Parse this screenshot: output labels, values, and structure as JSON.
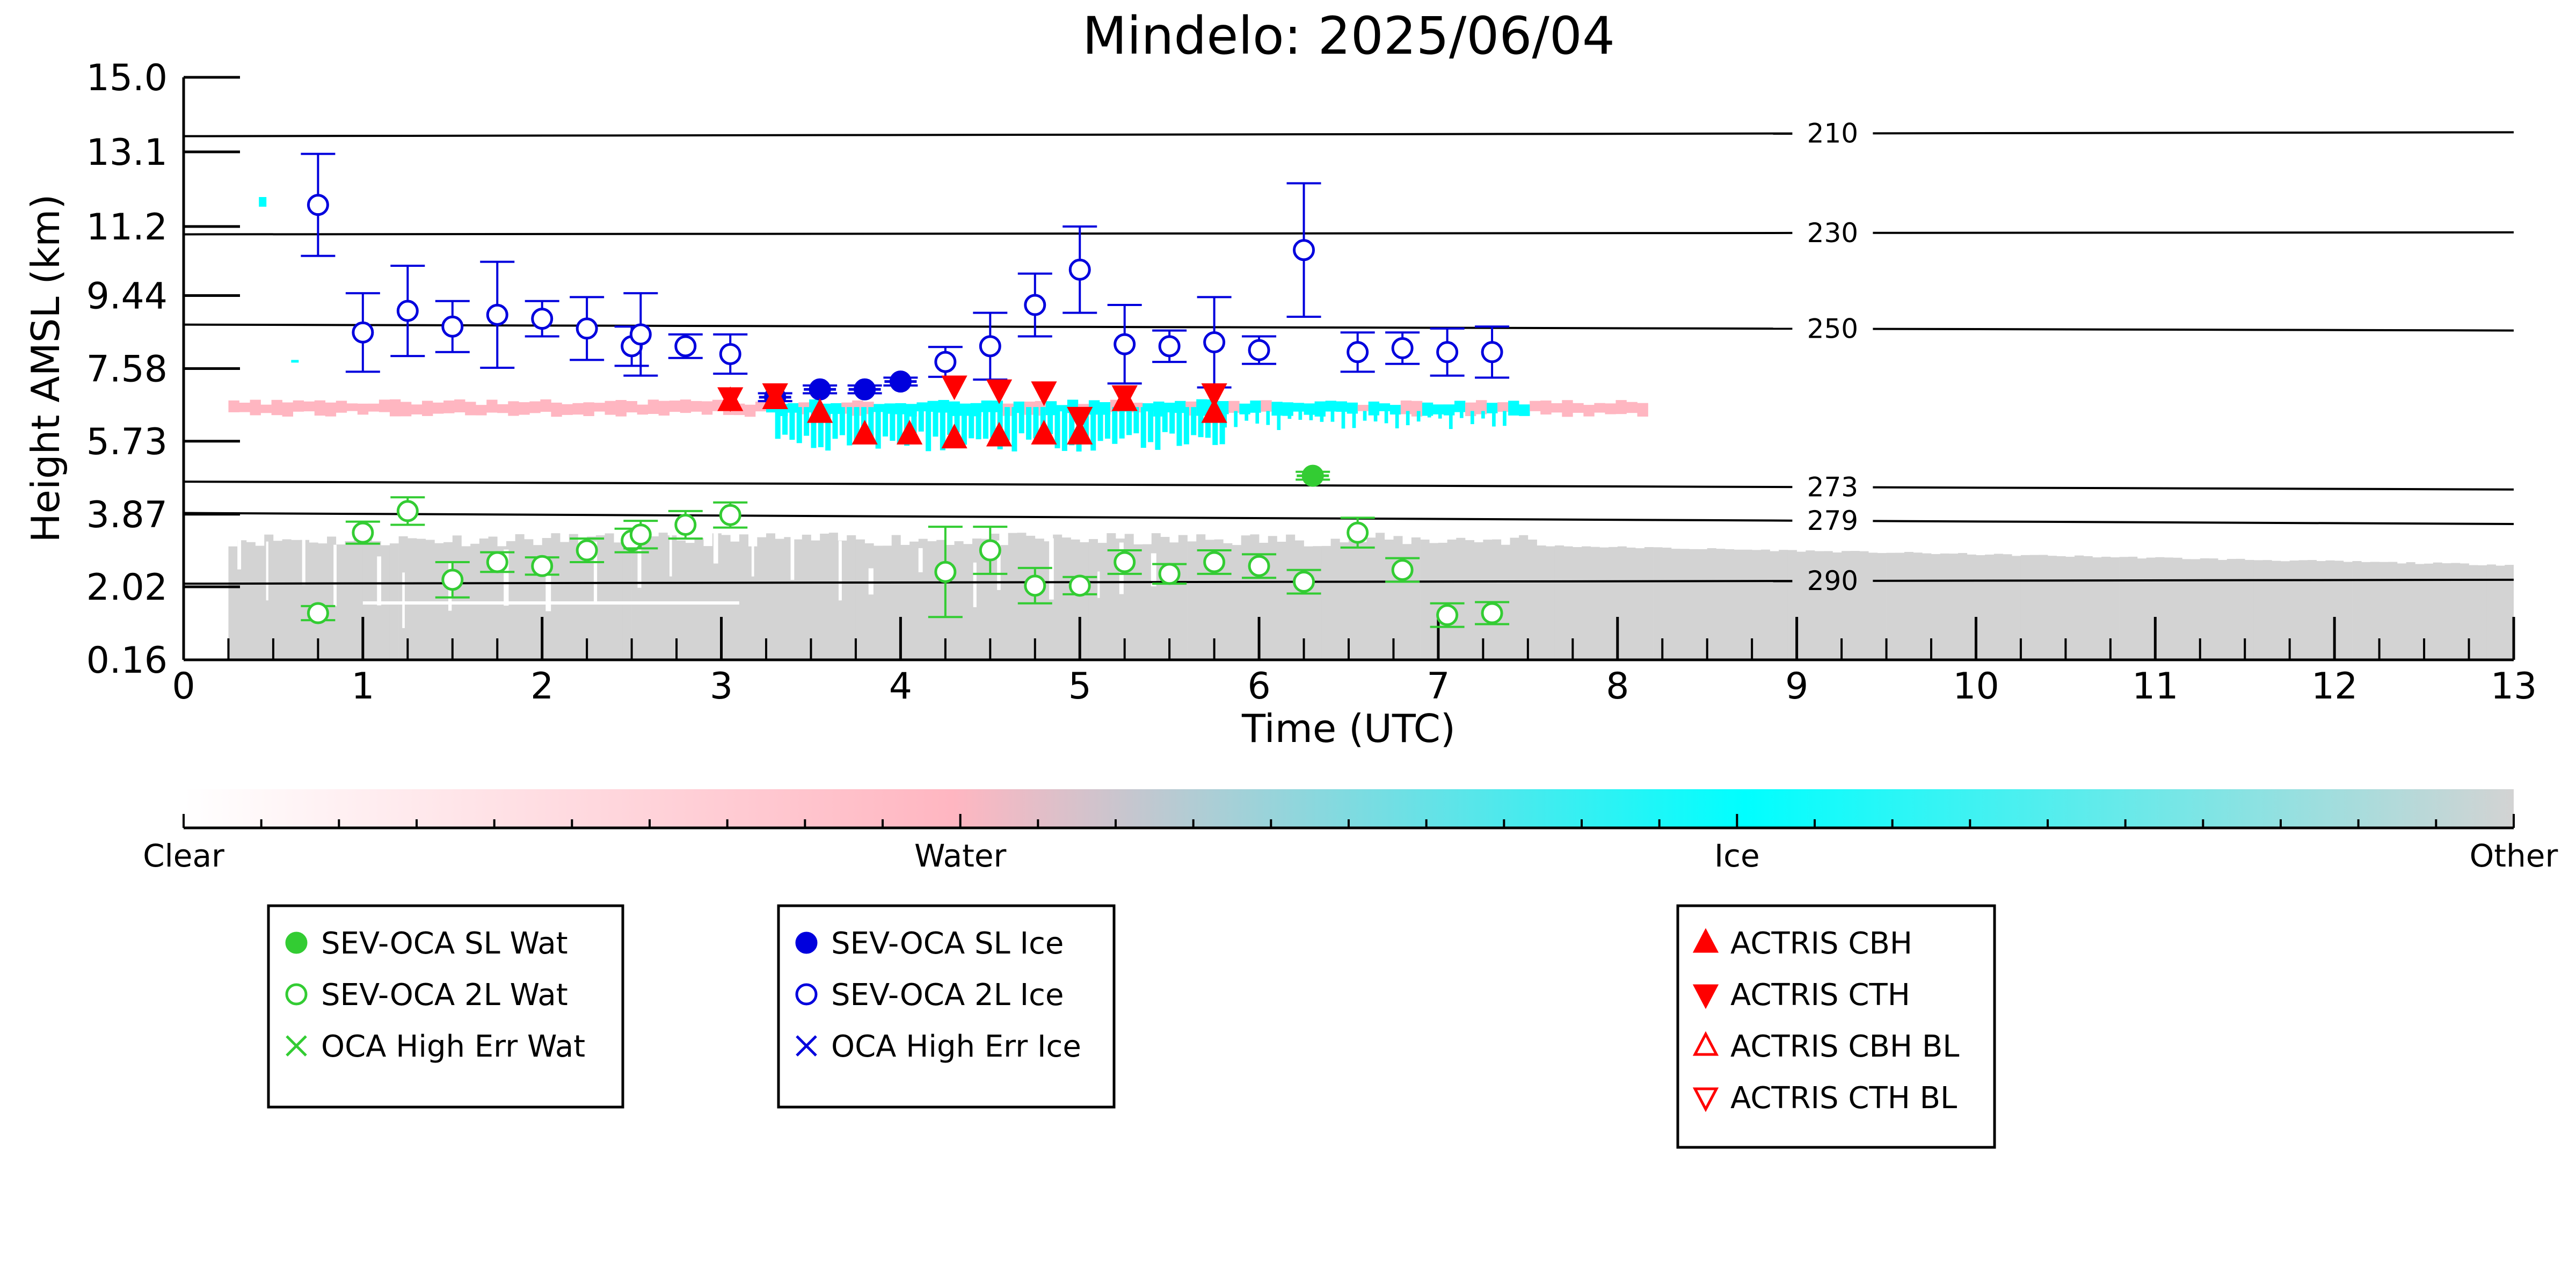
{
  "chart_data": {
    "type": "scatter",
    "title": "Mindelo: 2025/06/04",
    "xlabel": "Time (UTC)",
    "ylabel": "Height AMSL (km)",
    "xlim": [
      0,
      13
    ],
    "ylim": [
      0.16,
      15.0
    ],
    "x_ticks": [
      "0",
      "1",
      "2",
      "3",
      "4",
      "5",
      "6",
      "7",
      "8",
      "9",
      "10",
      "11",
      "12",
      "13"
    ],
    "y_ticks": [
      {
        "value": 15.0,
        "label": "15.0"
      },
      {
        "value": 13.1,
        "label": "13.1"
      },
      {
        "value": 11.2,
        "label": "11.2"
      },
      {
        "value": 9.44,
        "label": "9.44"
      },
      {
        "value": 7.58,
        "label": "7.58"
      },
      {
        "value": 5.73,
        "label": "5.73"
      },
      {
        "value": 3.87,
        "label": "3.87"
      },
      {
        "value": 2.02,
        "label": "2.02"
      },
      {
        "value": 0.16,
        "label": "0.16"
      }
    ],
    "isotherms": [
      {
        "label": "210",
        "left_km": 13.5,
        "right_km": 13.6
      },
      {
        "label": "230",
        "left_km": 11.0,
        "right_km": 11.05
      },
      {
        "label": "250",
        "left_km": 8.7,
        "right_km": 8.55
      },
      {
        "label": "273",
        "left_km": 4.7,
        "right_km": 4.5
      },
      {
        "label": "279",
        "left_km": 3.9,
        "right_km": 3.62
      },
      {
        "label": "290",
        "left_km": 2.1,
        "right_km": 2.2
      }
    ],
    "colorbar": {
      "labels": [
        "Clear",
        "Water",
        "Ice",
        "Other"
      ],
      "colors": [
        "#ffffff",
        "#ffb6c1",
        "#00ffff",
        "#d3d3d3"
      ]
    },
    "colors": {
      "water": "#33cc33",
      "ice": "#0000dd",
      "actris": "#ff0000",
      "water_phase": "#ffb6c1",
      "ice_phase": "#00ffff",
      "other_phase": "#d3d3d3"
    },
    "series": [
      {
        "name": "SEV-OCA SL Wat",
        "marker": "filled-circle",
        "points": [
          {
            "x": 6.3,
            "y": 4.85,
            "err": 0.1
          }
        ]
      },
      {
        "name": "SEV-OCA 2L Wat",
        "marker": "open-circle",
        "points": [
          {
            "x": 0.75,
            "y": 1.35,
            "err": 0.18
          },
          {
            "x": 1.0,
            "y": 3.4,
            "err": 0.28
          },
          {
            "x": 1.25,
            "y": 3.95,
            "err": 0.35
          },
          {
            "x": 1.5,
            "y": 2.2,
            "err": 0.45
          },
          {
            "x": 1.75,
            "y": 2.65,
            "err": 0.25
          },
          {
            "x": 2.0,
            "y": 2.55,
            "err": 0.22
          },
          {
            "x": 2.25,
            "y": 2.95,
            "err": 0.3
          },
          {
            "x": 2.5,
            "y": 3.2,
            "err": 0.3
          },
          {
            "x": 2.55,
            "y": 3.35,
            "err": 0.35
          },
          {
            "x": 2.8,
            "y": 3.6,
            "err": 0.35
          },
          {
            "x": 3.05,
            "y": 3.85,
            "err": 0.32
          },
          {
            "x": 4.25,
            "y": 2.4,
            "err": 1.15
          },
          {
            "x": 4.5,
            "y": 2.95,
            "err": 0.6
          },
          {
            "x": 4.75,
            "y": 2.05,
            "err": 0.45
          },
          {
            "x": 5.0,
            "y": 2.05,
            "err": 0.22
          },
          {
            "x": 5.25,
            "y": 2.65,
            "err": 0.3
          },
          {
            "x": 5.5,
            "y": 2.35,
            "err": 0.25
          },
          {
            "x": 5.75,
            "y": 2.65,
            "err": 0.3
          },
          {
            "x": 6.0,
            "y": 2.55,
            "err": 0.3
          },
          {
            "x": 6.25,
            "y": 2.15,
            "err": 0.3
          },
          {
            "x": 6.55,
            "y": 3.4,
            "err": 0.38
          },
          {
            "x": 6.8,
            "y": 2.45,
            "err": 0.3
          },
          {
            "x": 7.05,
            "y": 1.3,
            "err": 0.3
          },
          {
            "x": 7.3,
            "y": 1.35,
            "err": 0.28
          }
        ]
      },
      {
        "name": "SEV-OCA SL Ice",
        "marker": "filled-circle",
        "points": [
          {
            "x": 3.3,
            "y": 6.85,
            "err": 0.1
          },
          {
            "x": 3.55,
            "y": 7.05,
            "err": 0.1
          },
          {
            "x": 3.8,
            "y": 7.05,
            "err": 0.1
          },
          {
            "x": 4.0,
            "y": 7.25,
            "err": 0.1
          }
        ]
      },
      {
        "name": "SEV-OCA 2L Ice",
        "marker": "open-circle",
        "points": [
          {
            "x": 0.75,
            "y": 11.75,
            "err": 1.3
          },
          {
            "x": 1.0,
            "y": 8.5,
            "err": 1.0
          },
          {
            "x": 1.25,
            "y": 9.05,
            "err": 1.15
          },
          {
            "x": 1.5,
            "y": 8.65,
            "err": 0.65
          },
          {
            "x": 1.75,
            "y": 8.95,
            "err": 1.35
          },
          {
            "x": 2.0,
            "y": 8.85,
            "err": 0.45
          },
          {
            "x": 2.25,
            "y": 8.6,
            "err": 0.8
          },
          {
            "x": 2.5,
            "y": 8.15,
            "err": 0.5
          },
          {
            "x": 2.55,
            "y": 8.45,
            "err": 1.05
          },
          {
            "x": 2.8,
            "y": 8.15,
            "err": 0.3
          },
          {
            "x": 3.05,
            "y": 7.95,
            "err": 0.5
          },
          {
            "x": 4.25,
            "y": 7.75,
            "err": 0.38
          },
          {
            "x": 4.5,
            "y": 8.15,
            "err": 0.85
          },
          {
            "x": 4.75,
            "y": 9.2,
            "err": 0.8
          },
          {
            "x": 5.0,
            "y": 10.1,
            "err": 1.1
          },
          {
            "x": 5.25,
            "y": 8.2,
            "err": 1.0
          },
          {
            "x": 5.5,
            "y": 8.15,
            "err": 0.4
          },
          {
            "x": 5.75,
            "y": 8.25,
            "err": 1.15
          },
          {
            "x": 6.0,
            "y": 8.05,
            "err": 0.35
          },
          {
            "x": 6.25,
            "y": 10.6,
            "err": 1.7
          },
          {
            "x": 6.55,
            "y": 8.0,
            "err": 0.5
          },
          {
            "x": 6.8,
            "y": 8.1,
            "err": 0.4
          },
          {
            "x": 7.05,
            "y": 8.0,
            "err": 0.6
          },
          {
            "x": 7.3,
            "y": 8.0,
            "err": 0.65
          }
        ]
      },
      {
        "name": "ACTRIS CBH",
        "marker": "triangle-up",
        "points": [
          {
            "x": 3.05,
            "y": 6.75
          },
          {
            "x": 3.3,
            "y": 6.8
          },
          {
            "x": 3.55,
            "y": 6.45
          },
          {
            "x": 3.8,
            "y": 5.9
          },
          {
            "x": 4.05,
            "y": 5.9
          },
          {
            "x": 4.3,
            "y": 5.8
          },
          {
            "x": 4.55,
            "y": 5.85
          },
          {
            "x": 4.8,
            "y": 5.9
          },
          {
            "x": 5.0,
            "y": 5.9
          },
          {
            "x": 5.25,
            "y": 6.75
          },
          {
            "x": 5.75,
            "y": 6.45
          }
        ]
      },
      {
        "name": "ACTRIS CTH",
        "marker": "triangle-down",
        "points": [
          {
            "x": 3.05,
            "y": 6.85
          },
          {
            "x": 3.3,
            "y": 6.95
          },
          {
            "x": 4.3,
            "y": 7.15
          },
          {
            "x": 4.55,
            "y": 7.05
          },
          {
            "x": 4.8,
            "y": 7.0
          },
          {
            "x": 5.0,
            "y": 6.35
          },
          {
            "x": 5.25,
            "y": 6.9
          },
          {
            "x": 5.75,
            "y": 6.95
          }
        ]
      },
      {
        "name": "OCA High Err Wat",
        "marker": "x",
        "points": []
      },
      {
        "name": "OCA High Err Ice",
        "marker": "x",
        "points": []
      },
      {
        "name": "ACTRIS CBH BL",
        "marker": "open-triangle-up",
        "points": []
      },
      {
        "name": "ACTRIS CTH BL",
        "marker": "open-triangle-down",
        "points": []
      }
    ],
    "legend_groups": [
      [
        "SEV-OCA SL Wat",
        "SEV-OCA 2L Wat",
        "OCA High Err Wat"
      ],
      [
        "SEV-OCA SL Ice",
        "SEV-OCA 2L Ice",
        "OCA High Err Ice"
      ],
      [
        "ACTRIS CBH",
        "ACTRIS CTH",
        "ACTRIS CBH BL",
        "ACTRIS CTH BL"
      ]
    ]
  }
}
